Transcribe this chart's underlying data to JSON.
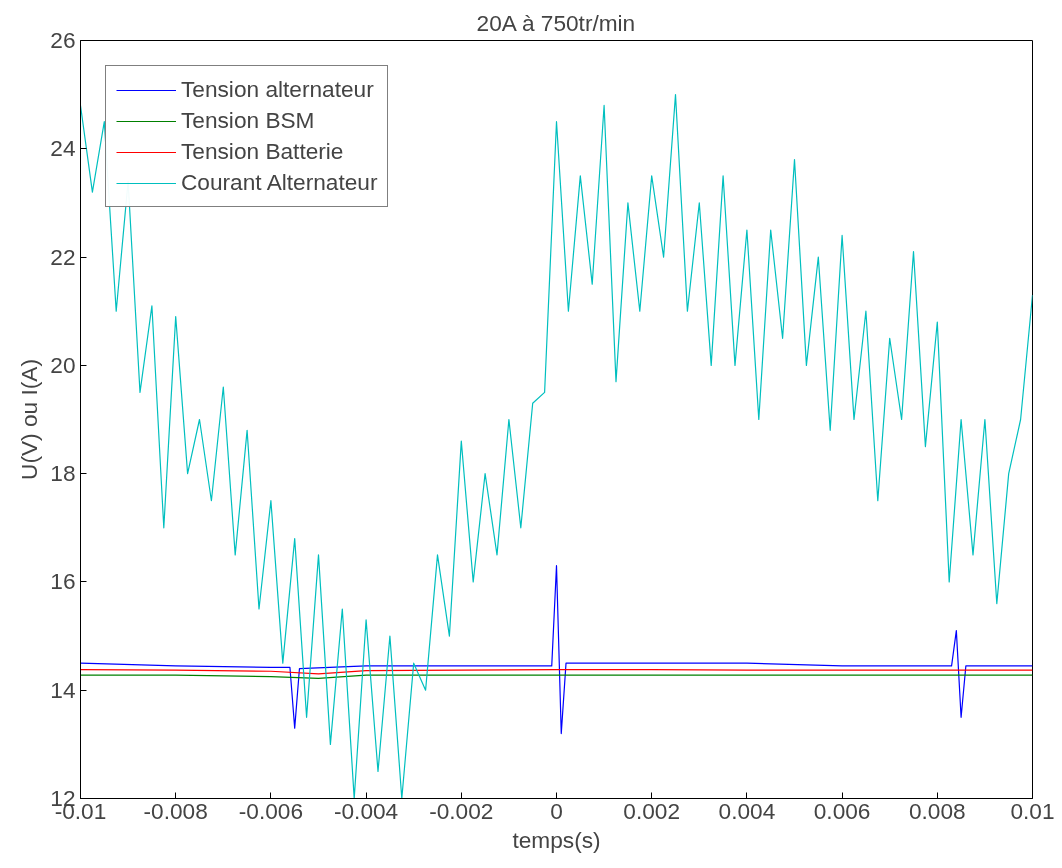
{
  "chart_data": {
    "type": "line",
    "title": "20A à 750tr/min",
    "xlabel": "temps(s)",
    "ylabel": "U(V) ou I(A)",
    "xlim": [
      -0.01,
      0.01
    ],
    "ylim": [
      12,
      26
    ],
    "xticks": [
      -0.01,
      -0.008,
      -0.006,
      -0.004,
      -0.002,
      0,
      0.002,
      0.004,
      0.006,
      0.008,
      0.01
    ],
    "yticks": [
      12,
      14,
      16,
      18,
      20,
      22,
      24,
      26
    ],
    "grid": false,
    "legend": "top left",
    "line_style": "solid",
    "marker": "none",
    "series": [
      {
        "name": "Tension alternateur",
        "color": "#0000ff",
        "x": [
          -0.01,
          -0.008,
          -0.006,
          -0.0056,
          -0.0055,
          -0.0054,
          -0.004,
          -0.002,
          -0.0001,
          0,
          0.0001,
          0.0002,
          0.002,
          0.004,
          0.006,
          0.0083,
          0.0084,
          0.0085,
          0.0086,
          0.01
        ],
        "values": [
          14.5,
          14.45,
          14.42,
          14.42,
          13.3,
          14.4,
          14.45,
          14.45,
          14.45,
          16.3,
          13.2,
          14.5,
          14.5,
          14.5,
          14.45,
          14.45,
          15.1,
          13.5,
          14.45,
          14.45
        ]
      },
      {
        "name": "Tension BSM",
        "color": "#008000",
        "x": [
          -0.01,
          -0.008,
          -0.006,
          -0.005,
          -0.004,
          -0.002,
          0,
          0.002,
          0.004,
          0.006,
          0.008,
          0.01
        ],
        "values": [
          14.28,
          14.28,
          14.25,
          14.22,
          14.28,
          14.28,
          14.28,
          14.28,
          14.28,
          14.28,
          14.28,
          14.28
        ]
      },
      {
        "name": "Tension Batterie",
        "color": "#ff0000",
        "x": [
          -0.01,
          -0.008,
          -0.006,
          -0.005,
          -0.004,
          -0.002,
          0,
          0.002,
          0.004,
          0.006,
          0.008,
          0.01
        ],
        "values": [
          14.38,
          14.37,
          14.35,
          14.3,
          14.36,
          14.37,
          14.38,
          14.38,
          14.37,
          14.37,
          14.37,
          14.37
        ]
      },
      {
        "name": "Courant Alternateur",
        "color": "#00bfbf",
        "x": [
          -0.01,
          -0.00975,
          -0.0095,
          -0.00925,
          -0.009,
          -0.00875,
          -0.0085,
          -0.00825,
          -0.008,
          -0.00775,
          -0.0075,
          -0.00725,
          -0.007,
          -0.00675,
          -0.0065,
          -0.00625,
          -0.006,
          -0.00575,
          -0.0055,
          -0.00525,
          -0.005,
          -0.00475,
          -0.0045,
          -0.00425,
          -0.004,
          -0.00375,
          -0.0035,
          -0.00325,
          -0.003,
          -0.00275,
          -0.0025,
          -0.00225,
          -0.002,
          -0.00175,
          -0.0015,
          -0.00125,
          -0.001,
          -0.00075,
          -0.0005,
          -0.00025,
          0,
          0.00025,
          0.0005,
          0.00075,
          0.001,
          0.00125,
          0.0015,
          0.00175,
          0.002,
          0.00225,
          0.0025,
          0.00275,
          0.003,
          0.00325,
          0.0035,
          0.00375,
          0.004,
          0.00425,
          0.0045,
          0.00475,
          0.005,
          0.00525,
          0.0055,
          0.00575,
          0.006,
          0.00625,
          0.0065,
          0.00675,
          0.007,
          0.00725,
          0.0075,
          0.00775,
          0.008,
          0.00825,
          0.0085,
          0.00875,
          0.009,
          0.00925,
          0.0095,
          0.00975,
          0.01
        ],
        "values": [
          24.8,
          23.2,
          24.5,
          21.0,
          23.4,
          19.5,
          21.1,
          17.0,
          20.9,
          18.0,
          19.0,
          17.5,
          19.6,
          16.5,
          18.8,
          15.5,
          17.5,
          14.5,
          16.8,
          13.5,
          16.5,
          13.0,
          15.5,
          12.0,
          15.3,
          12.5,
          15.0,
          12.0,
          14.5,
          14.0,
          16.5,
          15.0,
          18.6,
          16.0,
          18.0,
          16.5,
          19.0,
          17.0,
          19.3,
          19.5,
          24.5,
          21.0,
          23.5,
          21.5,
          24.8,
          19.7,
          23.0,
          21.0,
          23.5,
          22.0,
          25.0,
          21.0,
          23.0,
          20.0,
          23.5,
          20.0,
          22.5,
          19.0,
          22.5,
          20.5,
          23.8,
          20.0,
          22.0,
          18.8,
          22.4,
          19.0,
          21.0,
          17.5,
          20.5,
          19.0,
          22.1,
          18.5,
          20.8,
          16.0,
          19.0,
          16.5,
          19.0,
          15.6,
          18.0,
          19.0,
          21.3
        ]
      }
    ]
  }
}
